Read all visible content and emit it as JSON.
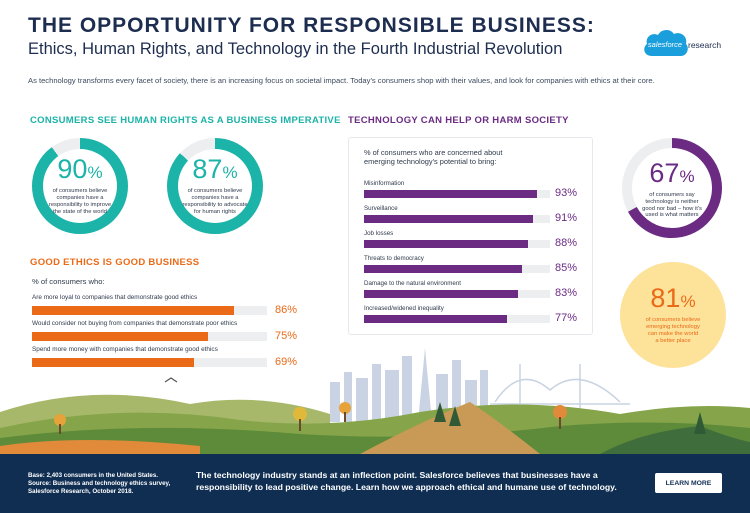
{
  "header": {
    "title": "THE OPPORTUNITY FOR RESPONSIBLE BUSINESS:",
    "subtitle": "Ethics, Human Rights, and Technology in the Fourth Industrial Revolution",
    "logo_word": "salesforce",
    "logo_suffix": "research",
    "intro": "As technology transforms every facet of society, there is an increasing focus on societal impact. Today's consumers shop with their values, and look for companies with ethics at their core."
  },
  "human_rights": {
    "title": "CONSUMERS SEE HUMAN RIGHTS AS A BUSINESS IMPERATIVE",
    "stats": [
      {
        "value": "90",
        "unit": "%",
        "line1": "of consumers believe",
        "line2": "companies have a",
        "line3": "responsibility to improve",
        "line4": "the state of the world",
        "fraction": 0.9
      },
      {
        "value": "87",
        "unit": "%",
        "line1": "of consumers believe",
        "line2": "companies have a",
        "line3": "responsibility to advocate",
        "line4": "for human rights",
        "fraction": 0.87
      }
    ]
  },
  "ethics": {
    "title": "GOOD ETHICS IS GOOD BUSINESS",
    "label": "% of consumers who:",
    "items": [
      {
        "label": "Are more loyal to companies that demonstrate good ethics",
        "value": 86,
        "display": "86%"
      },
      {
        "label": "Would consider not buying from companies that demonstrate poor ethics",
        "value": 75,
        "display": "75%"
      },
      {
        "label": "Spend more money with companies that demonstrate good ethics",
        "value": 69,
        "display": "69%"
      }
    ]
  },
  "technology": {
    "title": "TECHNOLOGY CAN HELP OR HARM SOCIETY",
    "card_head_1": "% of consumers who are concerned about",
    "card_head_2": "emerging technology's potential to bring:",
    "items": [
      {
        "label": "Misinformation",
        "value": 93,
        "display": "93%"
      },
      {
        "label": "Surveillance",
        "value": 91,
        "display": "91%"
      },
      {
        "label": "Job losses",
        "value": 88,
        "display": "88%"
      },
      {
        "label": "Threats to democracy",
        "value": 85,
        "display": "85%"
      },
      {
        "label": "Damage to the natural environment",
        "value": 83,
        "display": "83%"
      },
      {
        "label": "Increased/widened inequality",
        "value": 77,
        "display": "77%"
      }
    ],
    "stat67": {
      "value": "67",
      "unit": "%",
      "line1": "of consumers say",
      "line2": "technology is neither",
      "line3": "good nor bad – how it's",
      "line4": "used is what matters",
      "fraction": 0.67
    },
    "stat81": {
      "value": "81",
      "unit": "%",
      "line1": "of consumers believe",
      "line2": "emerging technology",
      "line3": "can make the world",
      "line4": "a better place"
    }
  },
  "footer": {
    "base_1": "Base: 2,403 consumers in the United States.",
    "base_2": "Source: Business and technology ethics survey,",
    "base_3": "Salesforce Research, October 2018.",
    "message": "The technology industry stands at an inflection point. Salesforce believes that businesses have a responsibility to lead positive change. Learn how we approach ethical and humane use of technology.",
    "cta": "LEARN MORE"
  },
  "colors": {
    "teal": "#1cb3a8",
    "orange": "#ea6a18",
    "purple": "#6b2b83",
    "navy": "#0f2e52",
    "yellow": "#fde29a"
  }
}
